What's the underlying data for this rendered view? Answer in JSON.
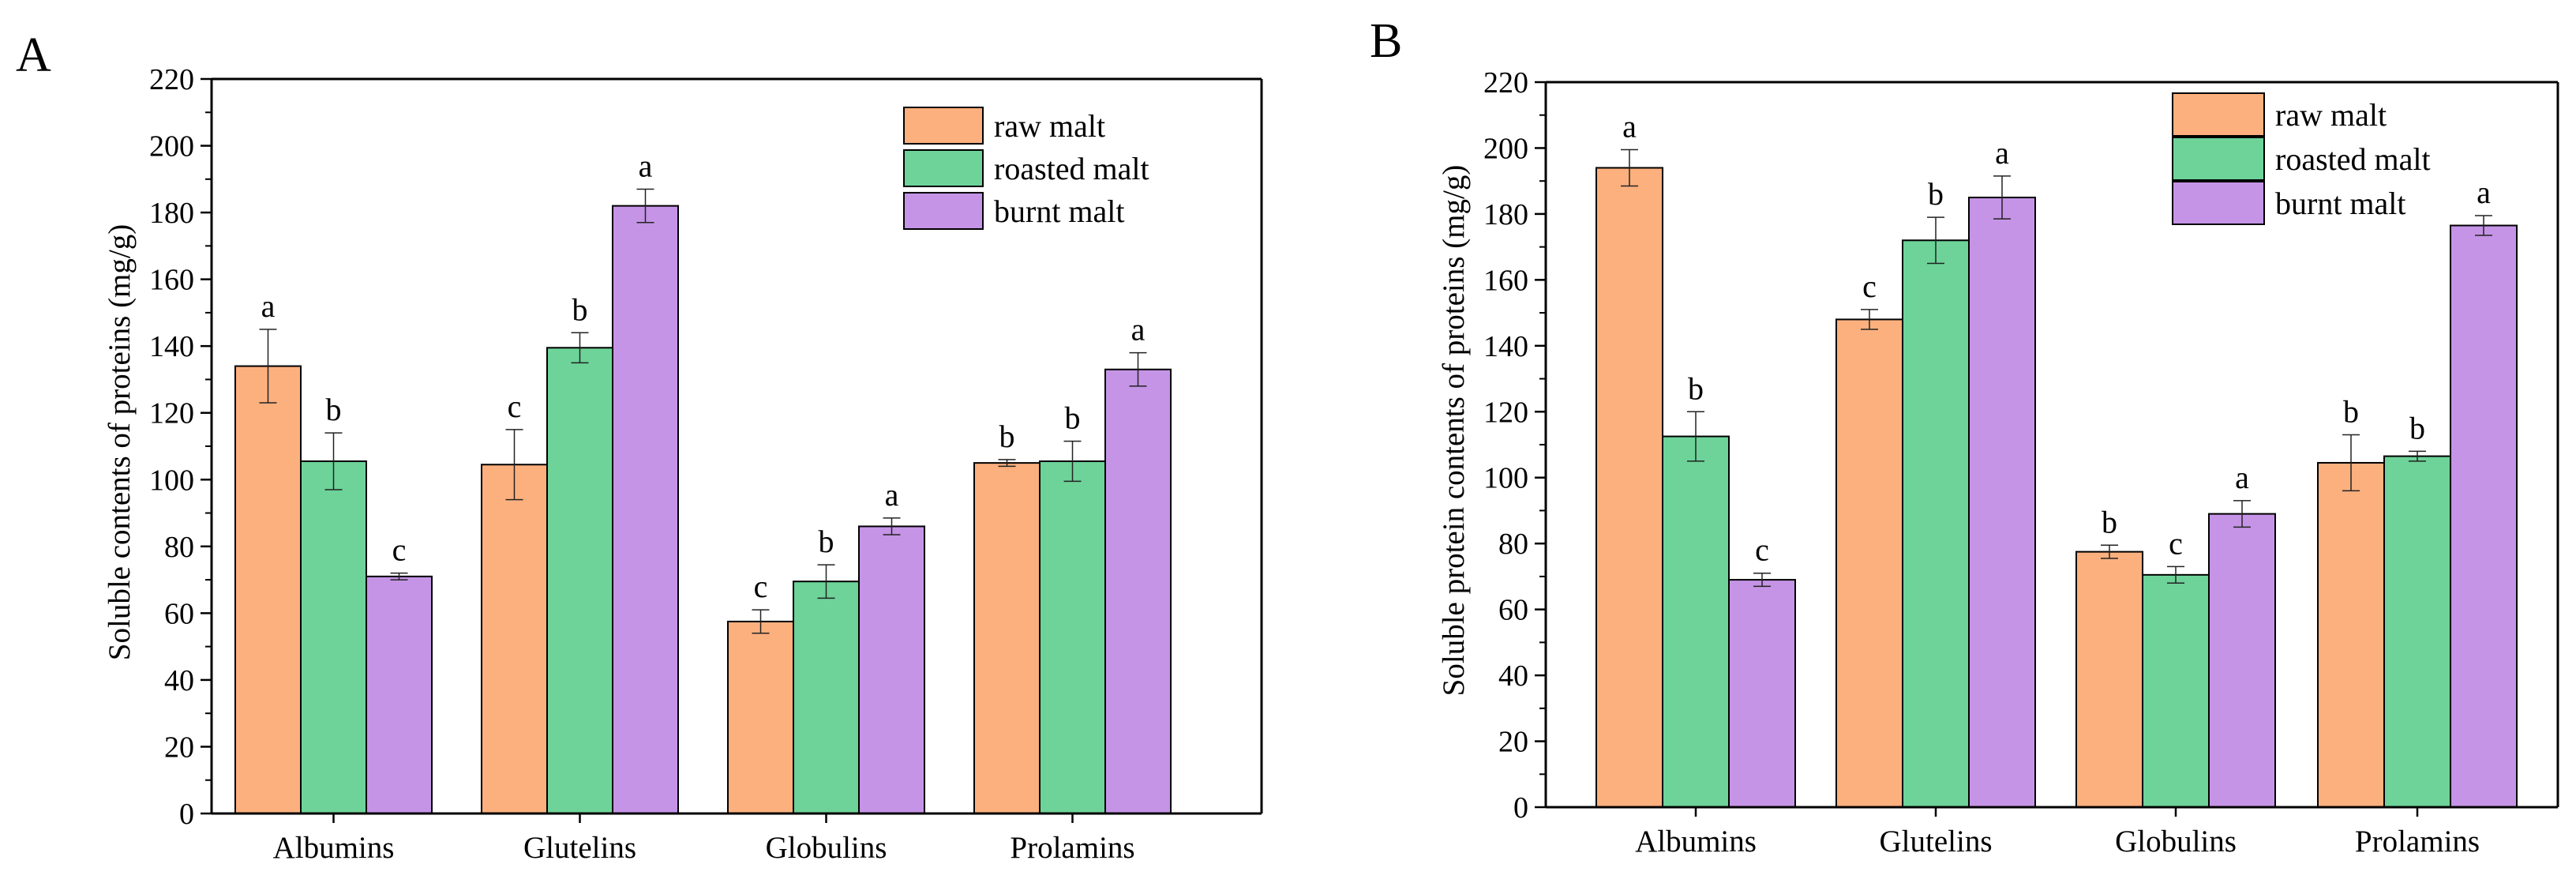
{
  "legend": [
    {
      "name": "raw malt",
      "color": "#FCB07E"
    },
    {
      "name": "roasted malt",
      "color": "#6DD399"
    },
    {
      "name": "burnt malt",
      "color": "#C594E6"
    }
  ],
  "chart_data": [
    {
      "panel_label": "A",
      "type": "bar",
      "ylabel": "Soluble contents of proteins (mg/g)",
      "xlabel": "",
      "ylim": [
        0,
        220
      ],
      "y_ticks": [
        "0",
        "20",
        "40",
        "60",
        "80",
        "100",
        "120",
        "140",
        "160",
        "180",
        "200",
        "220"
      ],
      "categories": [
        "Albumins",
        "Glutelins",
        "Globulins",
        "Prolamins"
      ],
      "legend_position": "top-right",
      "grid": false,
      "series": [
        {
          "name": "raw malt",
          "color": "#FCB07E",
          "values": [
            134,
            104.5,
            57.5,
            105
          ],
          "errors": [
            11,
            10.5,
            3.5,
            1
          ],
          "labels": [
            "a",
            "c",
            "c",
            "b"
          ]
        },
        {
          "name": "roasted malt",
          "color": "#6DD399",
          "values": [
            105.5,
            139.5,
            69.5,
            105.5
          ],
          "errors": [
            8.5,
            4.5,
            5,
            6
          ],
          "labels": [
            "b",
            "b",
            "b",
            "b"
          ]
        },
        {
          "name": "burnt malt",
          "color": "#C594E6",
          "values": [
            71,
            182,
            86,
            133
          ],
          "errors": [
            1,
            5,
            2.5,
            5
          ],
          "labels": [
            "c",
            "a",
            "a",
            "a"
          ]
        }
      ]
    },
    {
      "panel_label": "B",
      "type": "bar",
      "ylabel": "Soluble protein contents of proteins (mg/g)",
      "xlabel": "",
      "ylim": [
        0,
        220
      ],
      "y_ticks": [
        "0",
        "20",
        "40",
        "60",
        "80",
        "100",
        "120",
        "140",
        "160",
        "180",
        "200",
        "220"
      ],
      "categories": [
        "Albumins",
        "Glutelins",
        "Globulins",
        "Prolamins"
      ],
      "legend_position": "top-right",
      "grid": false,
      "series": [
        {
          "name": "raw malt",
          "color": "#FCB07E",
          "values": [
            194,
            148,
            77.5,
            104.5
          ],
          "errors": [
            5.5,
            3,
            2,
            8.5
          ],
          "labels": [
            "a",
            "c",
            "b",
            "b"
          ]
        },
        {
          "name": "roasted malt",
          "color": "#6DD399",
          "values": [
            112.5,
            172,
            70.5,
            106.5
          ],
          "errors": [
            7.5,
            7,
            2.5,
            1.5
          ],
          "labels": [
            "b",
            "b",
            "c",
            "b"
          ]
        },
        {
          "name": "burnt malt",
          "color": "#C594E6",
          "values": [
            69,
            185,
            89,
            176.5
          ],
          "errors": [
            2,
            6.5,
            4,
            3
          ],
          "labels": [
            "c",
            "a",
            "a",
            "a"
          ]
        }
      ]
    }
  ]
}
